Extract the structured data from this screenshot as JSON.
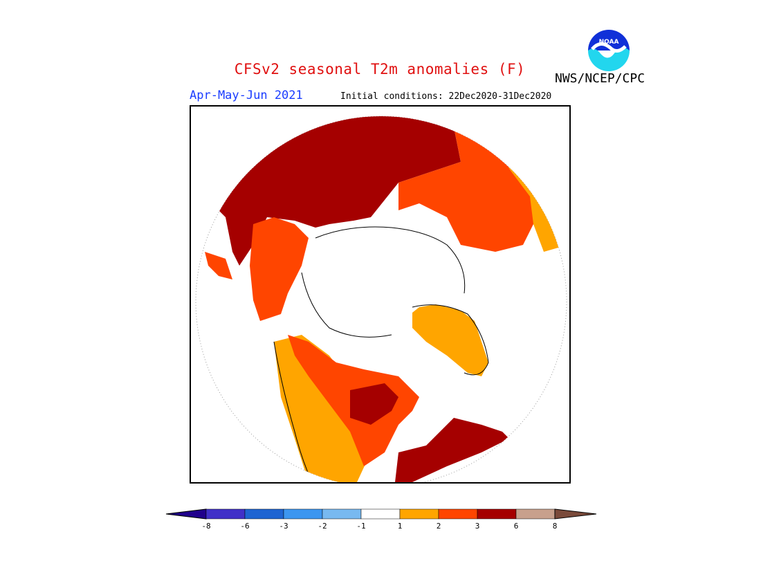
{
  "title": "CFSv2 seasonal T2m anomalies (F)",
  "period": "Apr-May-Jun 2021",
  "initial_conditions": "Initial conditions: 22Dec2020-31Dec2020",
  "agency": "NWS/NCEP/CPC",
  "logo_text": "NOAA",
  "colors": {
    "title": "#e01010",
    "period": "#1a3cff",
    "land_base": "#ffffff",
    "anom_1_2": "#ffa500",
    "anom_2_3": "#ff4500",
    "anom_3_6": "#a50000",
    "anom_6_8": "#c8a08c",
    "anom_gt_8": "#7a4a3a"
  },
  "legend": {
    "ticks": [
      "-8",
      "-6",
      "-3",
      "-2",
      "-1",
      "1",
      "2",
      "3",
      "6",
      "8"
    ],
    "bins": [
      {
        "label": "< -8",
        "color": "#20008c"
      },
      {
        "label": "-8 to -6",
        "color": "#4030c8"
      },
      {
        "label": "-6 to -3",
        "color": "#1e64d2"
      },
      {
        "label": "-3 to -2",
        "color": "#3c96f0"
      },
      {
        "label": "-2 to -1",
        "color": "#78b9f0"
      },
      {
        "label": "-1 to 1",
        "color": "#ffffff"
      },
      {
        "label": "1 to 2",
        "color": "#ffa500"
      },
      {
        "label": "2 to 3",
        "color": "#ff4500"
      },
      {
        "label": "3 to 6",
        "color": "#a50000"
      },
      {
        "label": "6 to 8",
        "color": "#c8a08c"
      },
      {
        "label": "> 8",
        "color": "#7a4a3a"
      }
    ]
  }
}
